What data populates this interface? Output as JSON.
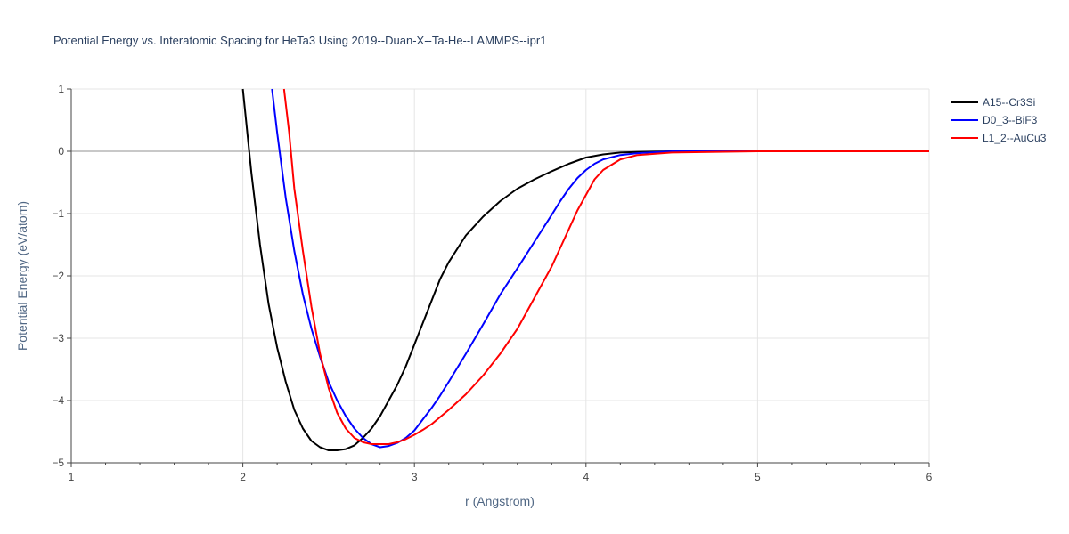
{
  "chart_data": {
    "type": "line",
    "title": "Potential Energy vs. Interatomic Spacing for HeTa3 Using 2019--Duan-X--Ta-He--LAMMPS--ipr1",
    "xlabel": "r (Angstrom)",
    "ylabel": "Potential Energy (eV/atom)",
    "xlim": [
      1,
      6
    ],
    "ylim": [
      -5,
      1
    ],
    "x_ticks": [
      1,
      2,
      3,
      4,
      5,
      6
    ],
    "y_ticks": [
      1,
      0,
      -1,
      -2,
      -3,
      -4,
      -5
    ],
    "x_tick_labels": [
      "1",
      "2",
      "3",
      "4",
      "5",
      "6"
    ],
    "y_tick_labels": [
      "1",
      "0",
      "−1",
      "−2",
      "−3",
      "−4",
      "−5"
    ],
    "grid": true,
    "legend_position": "top-right",
    "series": [
      {
        "name": "A15--Cr3Si",
        "color": "#000000",
        "x": [
          2.0,
          2.05,
          2.1,
          2.15,
          2.2,
          2.25,
          2.3,
          2.35,
          2.4,
          2.45,
          2.5,
          2.55,
          2.6,
          2.65,
          2.7,
          2.75,
          2.8,
          2.85,
          2.9,
          2.95,
          3.0,
          3.05,
          3.1,
          3.15,
          3.2,
          3.3,
          3.4,
          3.5,
          3.6,
          3.7,
          3.8,
          3.9,
          4.0,
          4.1,
          4.2,
          4.3,
          4.5,
          5.0,
          5.5,
          6.0
        ],
        "y": [
          1.0,
          -0.35,
          -1.5,
          -2.45,
          -3.15,
          -3.7,
          -4.15,
          -4.45,
          -4.65,
          -4.75,
          -4.8,
          -4.8,
          -4.78,
          -4.72,
          -4.6,
          -4.45,
          -4.25,
          -4.0,
          -3.75,
          -3.45,
          -3.1,
          -2.75,
          -2.4,
          -2.05,
          -1.78,
          -1.35,
          -1.05,
          -0.8,
          -0.6,
          -0.45,
          -0.32,
          -0.2,
          -0.1,
          -0.05,
          -0.02,
          -0.01,
          0.0,
          0.0,
          0.0,
          0.0
        ]
      },
      {
        "name": "D0_3--BiF3",
        "color": "#0000ff",
        "x": [
          2.17,
          2.2,
          2.25,
          2.3,
          2.35,
          2.4,
          2.45,
          2.5,
          2.55,
          2.6,
          2.65,
          2.7,
          2.75,
          2.8,
          2.85,
          2.9,
          2.95,
          3.0,
          3.05,
          3.1,
          3.15,
          3.2,
          3.3,
          3.4,
          3.5,
          3.6,
          3.7,
          3.8,
          3.85,
          3.9,
          3.95,
          4.0,
          4.05,
          4.1,
          4.2,
          4.3,
          4.5,
          5.0,
          5.5,
          6.0
        ],
        "y": [
          1.0,
          0.3,
          -0.75,
          -1.6,
          -2.3,
          -2.85,
          -3.3,
          -3.7,
          -4.0,
          -4.25,
          -4.45,
          -4.6,
          -4.7,
          -4.75,
          -4.73,
          -4.68,
          -4.6,
          -4.48,
          -4.3,
          -4.12,
          -3.92,
          -3.7,
          -3.25,
          -2.78,
          -2.3,
          -1.88,
          -1.45,
          -1.02,
          -0.8,
          -0.6,
          -0.43,
          -0.3,
          -0.2,
          -0.13,
          -0.06,
          -0.03,
          0.0,
          0.0,
          0.0,
          0.0
        ]
      },
      {
        "name": "L1_2--AuCu3",
        "color": "#ff0000",
        "x": [
          2.24,
          2.27,
          2.3,
          2.35,
          2.4,
          2.45,
          2.5,
          2.55,
          2.6,
          2.65,
          2.7,
          2.75,
          2.8,
          2.85,
          2.9,
          2.95,
          3.0,
          3.05,
          3.1,
          3.2,
          3.3,
          3.4,
          3.5,
          3.6,
          3.7,
          3.8,
          3.85,
          3.9,
          3.95,
          4.0,
          4.05,
          4.1,
          4.2,
          4.3,
          4.5,
          5.0,
          5.5,
          6.0
        ],
        "y": [
          1.0,
          0.3,
          -0.6,
          -1.6,
          -2.5,
          -3.25,
          -3.8,
          -4.2,
          -4.45,
          -4.6,
          -4.67,
          -4.7,
          -4.7,
          -4.7,
          -4.67,
          -4.62,
          -4.55,
          -4.47,
          -4.38,
          -4.15,
          -3.9,
          -3.6,
          -3.25,
          -2.85,
          -2.35,
          -1.85,
          -1.55,
          -1.25,
          -0.95,
          -0.7,
          -0.45,
          -0.3,
          -0.13,
          -0.06,
          -0.02,
          0.0,
          0.0,
          0.0
        ]
      }
    ]
  }
}
